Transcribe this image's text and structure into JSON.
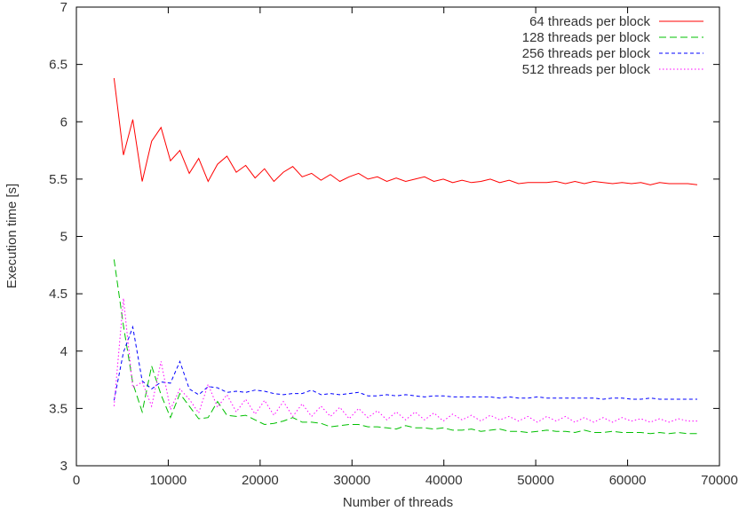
{
  "chart_data": {
    "type": "line",
    "title": "",
    "xlabel": "Number of threads",
    "ylabel": "Execution time [s]",
    "xlim": [
      0,
      70000
    ],
    "ylim": [
      3,
      7
    ],
    "xticks": [
      0,
      10000,
      20000,
      30000,
      40000,
      50000,
      60000,
      70000
    ],
    "yticks": [
      3,
      3.5,
      4,
      4.5,
      5,
      5.5,
      6,
      6.5,
      7
    ],
    "xtick_labels": [
      "0",
      "10000",
      "20000",
      "30000",
      "40000",
      "50000",
      "60000",
      "70000"
    ],
    "ytick_labels": [
      "3",
      "3.5",
      "4",
      "4.5",
      "5",
      "5.5",
      "6",
      "6.5",
      "7"
    ],
    "grid": false,
    "legend_position": "top-right",
    "x": [
      4096,
      5120,
      6144,
      7168,
      8192,
      9216,
      10240,
      11264,
      12288,
      13312,
      14336,
      15360,
      16384,
      17408,
      18432,
      19456,
      20480,
      21504,
      22528,
      23552,
      24576,
      25600,
      26624,
      27648,
      28672,
      29696,
      30720,
      31744,
      32768,
      33792,
      34816,
      35840,
      36864,
      37888,
      38912,
      39936,
      40960,
      41984,
      43008,
      44032,
      45056,
      46080,
      47104,
      48128,
      49152,
      50176,
      51200,
      52224,
      53248,
      54272,
      55296,
      56320,
      57344,
      58368,
      59392,
      60416,
      61440,
      62464,
      63488,
      64512,
      65536,
      66560,
      67584
    ],
    "series": [
      {
        "name": "64 threads per block",
        "color": "#ff0000",
        "dash": "solid",
        "values": [
          6.38,
          5.71,
          6.02,
          5.48,
          5.83,
          5.95,
          5.66,
          5.75,
          5.55,
          5.68,
          5.48,
          5.63,
          5.7,
          5.56,
          5.62,
          5.51,
          5.59,
          5.48,
          5.56,
          5.61,
          5.52,
          5.55,
          5.49,
          5.54,
          5.48,
          5.52,
          5.55,
          5.5,
          5.52,
          5.48,
          5.51,
          5.48,
          5.5,
          5.52,
          5.48,
          5.5,
          5.47,
          5.49,
          5.47,
          5.48,
          5.5,
          5.47,
          5.49,
          5.46,
          5.47,
          5.47,
          5.47,
          5.48,
          5.46,
          5.48,
          5.46,
          5.48,
          5.47,
          5.46,
          5.47,
          5.46,
          5.47,
          5.45,
          5.47,
          5.46,
          5.46,
          5.46,
          5.45
        ]
      },
      {
        "name": "128 threads per block",
        "color": "#00c000",
        "dash": "long-dash",
        "values": [
          4.8,
          4.22,
          3.72,
          3.47,
          3.87,
          3.62,
          3.42,
          3.63,
          3.52,
          3.41,
          3.42,
          3.56,
          3.44,
          3.43,
          3.44,
          3.4,
          3.36,
          3.37,
          3.39,
          3.42,
          3.38,
          3.38,
          3.37,
          3.34,
          3.35,
          3.36,
          3.36,
          3.34,
          3.34,
          3.33,
          3.32,
          3.35,
          3.33,
          3.33,
          3.32,
          3.33,
          3.31,
          3.31,
          3.32,
          3.3,
          3.31,
          3.32,
          3.3,
          3.3,
          3.29,
          3.3,
          3.31,
          3.3,
          3.3,
          3.29,
          3.31,
          3.29,
          3.29,
          3.3,
          3.29,
          3.29,
          3.29,
          3.28,
          3.29,
          3.28,
          3.29,
          3.28,
          3.28
        ]
      },
      {
        "name": "256 threads per block",
        "color": "#0000ff",
        "dash": "short-dash",
        "values": [
          3.57,
          3.99,
          4.21,
          3.74,
          3.67,
          3.73,
          3.72,
          3.91,
          3.67,
          3.62,
          3.69,
          3.68,
          3.64,
          3.65,
          3.64,
          3.66,
          3.65,
          3.63,
          3.62,
          3.63,
          3.63,
          3.66,
          3.62,
          3.63,
          3.62,
          3.63,
          3.64,
          3.61,
          3.61,
          3.62,
          3.61,
          3.62,
          3.61,
          3.6,
          3.61,
          3.61,
          3.6,
          3.6,
          3.6,
          3.6,
          3.6,
          3.59,
          3.6,
          3.59,
          3.59,
          3.6,
          3.59,
          3.59,
          3.59,
          3.59,
          3.59,
          3.59,
          3.58,
          3.59,
          3.59,
          3.58,
          3.58,
          3.59,
          3.58,
          3.58,
          3.58,
          3.58,
          3.58
        ]
      },
      {
        "name": "512 threads per block",
        "color": "#ff00ff",
        "dash": "dotted",
        "values": [
          3.52,
          4.46,
          3.68,
          3.73,
          3.52,
          3.91,
          3.49,
          3.67,
          3.58,
          3.46,
          3.71,
          3.51,
          3.62,
          3.47,
          3.58,
          3.45,
          3.57,
          3.44,
          3.56,
          3.43,
          3.54,
          3.43,
          3.52,
          3.43,
          3.51,
          3.41,
          3.5,
          3.42,
          3.48,
          3.4,
          3.47,
          3.4,
          3.47,
          3.4,
          3.46,
          3.39,
          3.45,
          3.4,
          3.44,
          3.39,
          3.44,
          3.4,
          3.43,
          3.39,
          3.43,
          3.38,
          3.43,
          3.39,
          3.43,
          3.38,
          3.42,
          3.38,
          3.42,
          3.38,
          3.42,
          3.39,
          3.41,
          3.38,
          3.41,
          3.38,
          3.41,
          3.39,
          3.39
        ]
      }
    ]
  }
}
